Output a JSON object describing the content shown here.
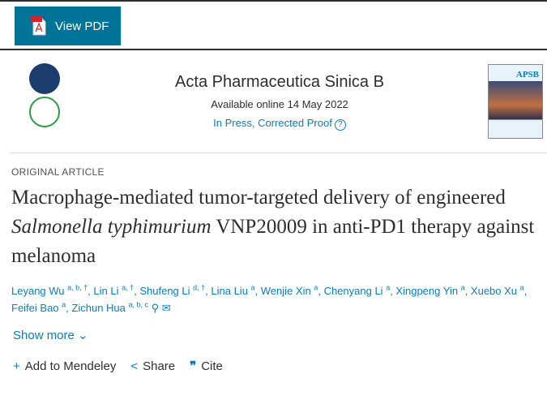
{
  "toolbar": {
    "view_pdf": "View PDF",
    "pdf_icon_label": "PDF"
  },
  "journal": {
    "title": "Acta Pharmaceutica Sinica B",
    "available": "Available online 14 May 2022",
    "status": "In Press, Corrected Proof",
    "cover_text": "APSB"
  },
  "article": {
    "type": "ORIGINAL ARTICLE",
    "title_before": "Macrophage-mediated tumor-targeted delivery of engineered ",
    "title_italic": "Salmonella typhimurium",
    "title_after": " VNP20009 in anti-PD1 therapy against melanoma"
  },
  "authors": [
    {
      "name": "Leyang Wu",
      "sup": "a, b, †"
    },
    {
      "name": "Lin Li",
      "sup": "a, †"
    },
    {
      "name": "Shufeng Li",
      "sup": "d, †"
    },
    {
      "name": "Lina Liu",
      "sup": "a"
    },
    {
      "name": "Wenjie Xin",
      "sup": "a"
    },
    {
      "name": "Chenyang Li",
      "sup": "a"
    },
    {
      "name": "Xingpeng Yin",
      "sup": "a"
    },
    {
      "name": "Xuebo Xu",
      "sup": "a"
    },
    {
      "name": "Feifei Bao",
      "sup": "a"
    },
    {
      "name": "Zichun Hua",
      "sup": "a, b, c"
    }
  ],
  "show_more": "Show more",
  "actions": {
    "mendeley": "Add to Mendeley",
    "share": "Share",
    "cite": "Cite"
  },
  "colors": {
    "accent": "#007398",
    "link": "#0c7dbb"
  }
}
